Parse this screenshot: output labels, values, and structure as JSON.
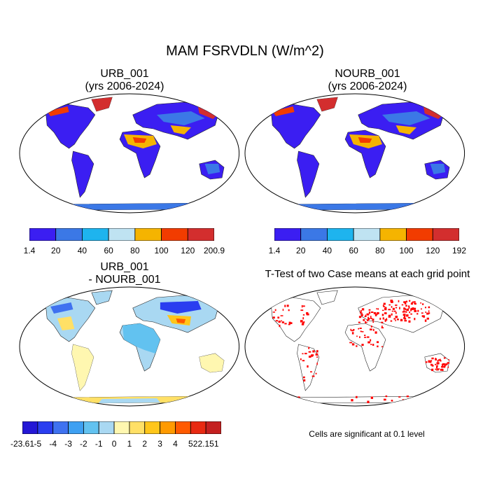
{
  "title": "MAM FSRVDLN (W/m^2)",
  "panels": {
    "urb": {
      "title_line1": "URB_001",
      "title_line2": "(yrs 2006-2024)"
    },
    "nourb": {
      "title_line1": "NOURB_001",
      "title_line2": "(yrs 2006-2024)"
    },
    "diff": {
      "title_line1": "URB_001",
      "title_line2": "- NOURB_001"
    },
    "ttest": {
      "title_line1": "T-Test of two Case means at each grid point",
      "note": "Cells are significant at 0.1 level",
      "sig_color": "#ff0000"
    }
  },
  "chart_data": [
    {
      "type": "heatmap",
      "name": "URB_001 (yrs 2006-2024)",
      "colorbar": {
        "labels": [
          "1.4",
          "20",
          "40",
          "60",
          "80",
          "100",
          "120",
          "200.9"
        ],
        "colors": [
          "#3b1ef2",
          "#3b78e6",
          "#1eb4ee",
          "#bfe3f2",
          "#f5b400",
          "#f23c00",
          "#d32e2e"
        ]
      }
    },
    {
      "type": "heatmap",
      "name": "NOURB_001 (yrs 2006-2024)",
      "colorbar": {
        "labels": [
          "1.4",
          "20",
          "40",
          "60",
          "80",
          "100",
          "120",
          "192"
        ],
        "colors": [
          "#3b1ef2",
          "#3b78e6",
          "#1eb4ee",
          "#bfe3f2",
          "#f5b400",
          "#f23c00",
          "#d32e2e"
        ]
      }
    },
    {
      "type": "heatmap",
      "name": "URB_001 - NOURB_001",
      "colorbar": {
        "labels": [
          "-23.61",
          "-5",
          "-4",
          "-3",
          "-2",
          "-1",
          "0",
          "1",
          "2",
          "3",
          "4",
          "5",
          "22.151"
        ],
        "colors": [
          "#2417d6",
          "#2a3ef0",
          "#3f72f0",
          "#3ea0f2",
          "#62c2f0",
          "#a9d8f2",
          "#fff7b0",
          "#ffe066",
          "#ffc61a",
          "#ff9a00",
          "#ff5a00",
          "#e82a12",
          "#c42020"
        ]
      }
    }
  ]
}
